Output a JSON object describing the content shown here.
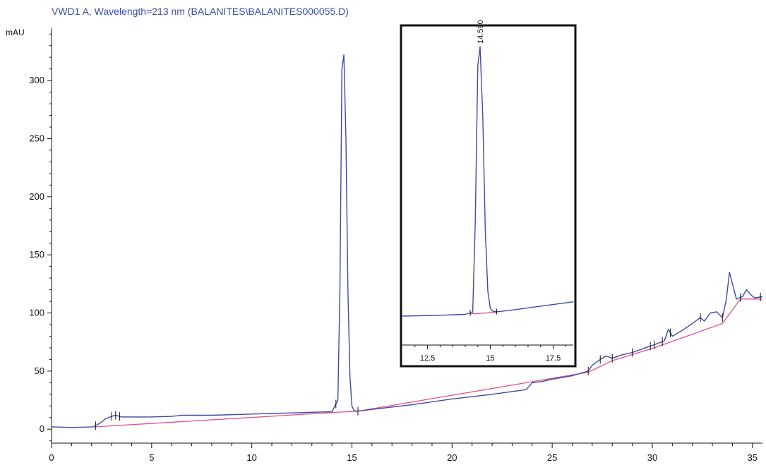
{
  "header": {
    "title": "VWD1 A, Wavelength=213 nm (BALANITES\\BALANITES000055.D)",
    "unit": "mAU"
  },
  "colors": {
    "signal": "#3d4aa8",
    "baseline": "#e0508a",
    "axis": "#111111",
    "inset_frame": "#111111"
  },
  "chart_data": [
    {
      "type": "line",
      "title": "VWD1 A, Wavelength=213 nm (BALANITES\\BALANITES000055.D)",
      "ylabel": "mAU",
      "xlabel": "",
      "xlim": [
        0,
        35.5
      ],
      "ylim": [
        -12,
        345
      ],
      "x_ticks": [
        0,
        5,
        10,
        15,
        20,
        25,
        30,
        35
      ],
      "y_ticks": [
        0,
        50,
        100,
        150,
        200,
        250,
        300
      ],
      "grid": false,
      "series": [
        {
          "x": [
            0,
            1,
            2.1,
            2.4,
            2.7,
            3,
            3.2,
            3.5,
            4,
            5,
            6,
            6.5,
            8,
            10,
            12,
            14,
            14.3,
            14.4,
            14.5,
            14.6,
            14.7,
            14.8,
            14.9,
            15.0,
            15.1,
            15.3,
            16,
            18,
            20,
            22,
            23.7,
            24,
            24.5,
            25,
            26,
            26.8,
            27,
            27.4,
            27.7,
            28,
            28.5,
            29,
            29.5,
            29.8,
            30,
            30.3,
            30.6,
            30.8,
            31,
            31.5,
            32,
            32.4,
            32.6,
            32.9,
            33.2,
            33.5,
            33.7,
            33.85,
            34.0,
            34.2,
            34.5,
            34.7,
            34.9,
            35.1,
            35.5
          ],
          "y": [
            2,
            1.5,
            2,
            5,
            9,
            11,
            12,
            10.5,
            10.5,
            10.5,
            11,
            12,
            12,
            13,
            14,
            15,
            25,
            120,
            310,
            322,
            250,
            120,
            45,
            20,
            16,
            15.5,
            17,
            21,
            26,
            30,
            34,
            40,
            41,
            43,
            46,
            50,
            55,
            60,
            63,
            61,
            64,
            66,
            69,
            71,
            72,
            74,
            76,
            86,
            80,
            85,
            91,
            96,
            93,
            100,
            101,
            96,
            112,
            135,
            125,
            112,
            114,
            120,
            116,
            113,
            114
          ]
        }
      ],
      "baseline": {
        "x": [
          2.2,
          14.2,
          15.3,
          26.8,
          28,
          30.1,
          33.5,
          34.4,
          35.5
        ],
        "y": [
          2,
          14.5,
          15.5,
          49,
          59,
          70,
          91,
          112,
          112
        ]
      },
      "integration_markers_x": [
        2.2,
        3.0,
        3.2,
        3.4,
        14.2,
        15.3,
        26.8,
        27.4,
        28.0,
        29.0,
        29.9,
        30.1,
        30.5,
        30.9,
        32.4,
        33.5,
        34.4,
        35.4
      ]
    },
    {
      "type": "line",
      "title": "",
      "xlabel": "",
      "ylabel": "",
      "xlim": [
        11.5,
        18.3
      ],
      "ylim": [
        -2,
        322
      ],
      "x_ticks": [
        12.5,
        15,
        17.5
      ],
      "x_tick_labels": [
        "12.5",
        "15",
        "17.5"
      ],
      "peak_label": "14.590",
      "series": [
        {
          "x": [
            11.5,
            13,
            14,
            14.3,
            14.4,
            14.5,
            14.59,
            14.7,
            14.8,
            14.9,
            15.0,
            15.1,
            15.3,
            16,
            17,
            18.3
          ],
          "y": [
            11.5,
            12.5,
            13.5,
            16,
            120,
            300,
            322,
            240,
            110,
            40,
            20,
            17,
            16.5,
            19,
            23,
            28
          ]
        }
      ],
      "baseline": {
        "x": [
          14.2,
          15.25
        ],
        "y": [
          14,
          15.8
        ]
      },
      "integration_markers_x": [
        14.2,
        15.25
      ]
    }
  ]
}
